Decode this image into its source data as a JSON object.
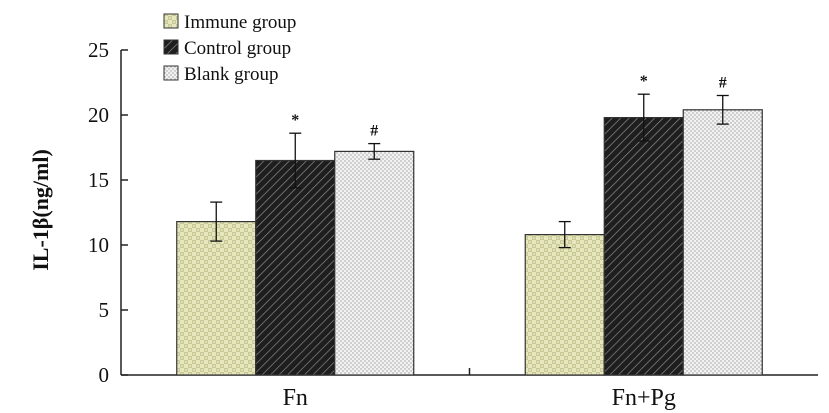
{
  "chart_data": {
    "type": "bar",
    "ylabel": "IL-1β(ng/ml)",
    "xlabel": "",
    "ylim": [
      0,
      25
    ],
    "yticks": [
      0,
      5,
      10,
      15,
      20,
      25
    ],
    "categories": [
      "Fn",
      "Fn+Pg"
    ],
    "legend_position": "top-left",
    "grid": false,
    "series": [
      {
        "name": "Immune group",
        "values": [
          11.8,
          10.8
        ],
        "errors": [
          1.5,
          1.0
        ],
        "markers": [
          "",
          ""
        ],
        "pattern": "checker",
        "color": "#dfe0b4"
      },
      {
        "name": "Control group",
        "values": [
          16.5,
          19.8
        ],
        "errors": [
          2.1,
          1.8
        ],
        "markers": [
          "*",
          "*"
        ],
        "pattern": "diagonal",
        "color": "#2a2a2a"
      },
      {
        "name": "Blank group",
        "values": [
          17.2,
          20.4
        ],
        "errors": [
          0.6,
          1.1
        ],
        "markers": [
          "#",
          "#"
        ],
        "pattern": "dots",
        "color": "#e8e8e8"
      }
    ]
  }
}
